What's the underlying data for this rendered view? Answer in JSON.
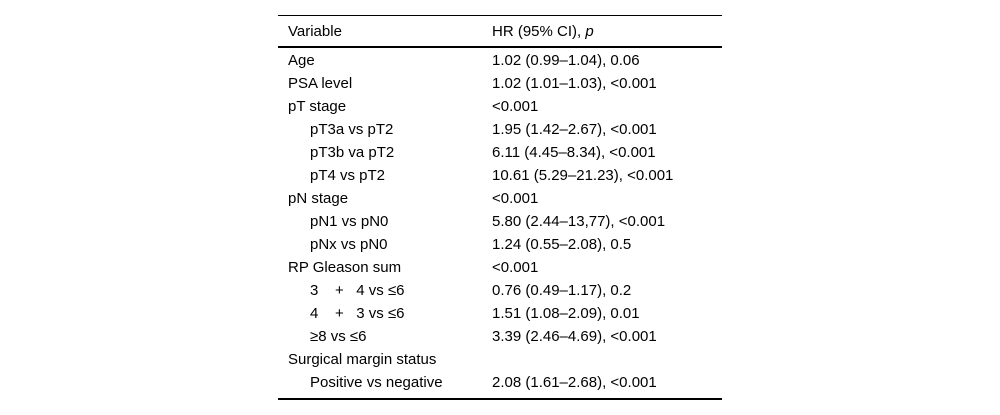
{
  "page": {
    "background": "#ffffff",
    "text_color": "#000000",
    "rule_color": "#000000"
  },
  "table": {
    "header": {
      "variable": "Variable",
      "value_prefix": "HR (95% CI), ",
      "value_p": "p"
    },
    "rows": [
      {
        "variable": "Age",
        "value": "1.02 (0.99–1.04), 0.06",
        "indent": false
      },
      {
        "variable": "PSA level",
        "value": "1.02 (1.01–1.03), <0.001",
        "indent": false
      },
      {
        "variable": "pT stage",
        "value": "<0.001",
        "indent": false
      },
      {
        "variable": "pT3a vs pT2",
        "value": "1.95 (1.42–2.67), <0.001",
        "indent": true
      },
      {
        "variable": "pT3b va pT2",
        "value": "6.11 (4.45–8.34), <0.001",
        "indent": true
      },
      {
        "variable": "pT4 vs pT2",
        "value": "10.61 (5.29–21.23), <0.001",
        "indent": true
      },
      {
        "variable": "pN stage",
        "value": "<0.001",
        "indent": false
      },
      {
        "variable": "pN1 vs pN0",
        "value": "5.80 (2.44–13,77), <0.001",
        "indent": true
      },
      {
        "variable": "pNx vs pN0",
        "value": "1.24 (0.55–2.08), 0.5",
        "indent": true
      },
      {
        "variable": "RP Gleason sum",
        "value": "<0.001",
        "indent": false
      },
      {
        "variable": "3    +   4 vs ≤6",
        "value": "0.76 (0.49–1.17), 0.2",
        "indent": true
      },
      {
        "variable": "4    +   3 vs ≤6",
        "value": "1.51 (1.08–2.09), 0.01",
        "indent": true
      },
      {
        "variable": "≥8 vs ≤6",
        "value": "3.39 (2.46–4.69), <0.001",
        "indent": true
      },
      {
        "variable": "Surgical margin status",
        "value": "",
        "indent": false
      },
      {
        "variable": "Positive vs negative",
        "value": "2.08 (1.61–2.68), <0.001",
        "indent": true
      }
    ]
  }
}
